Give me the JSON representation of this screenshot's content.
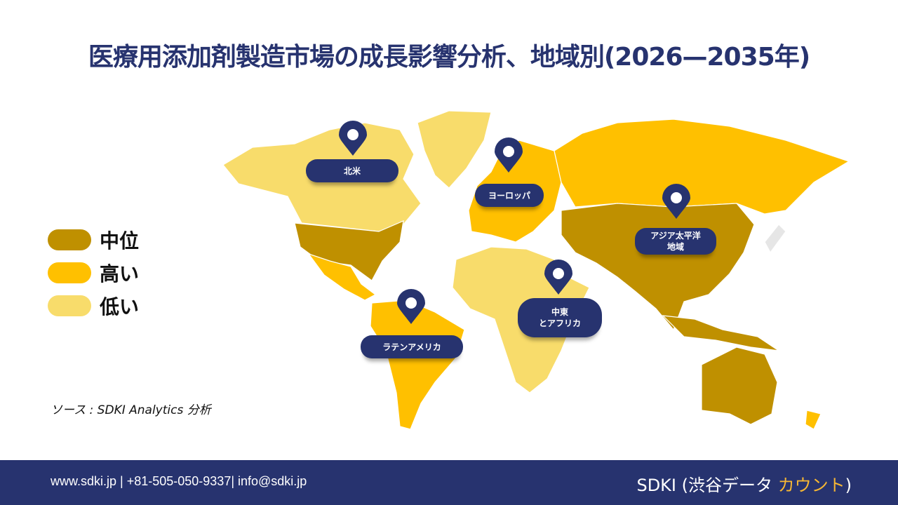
{
  "title": "医療用添加剤製造市場の成長影響分析、地域別(2026—2035年)",
  "legend": [
    {
      "label": "中位",
      "color": "#BF9000"
    },
    {
      "label": "高い",
      "color": "#FFC000"
    },
    {
      "label": "低い",
      "color": "#F8DC6B"
    }
  ],
  "regions": [
    {
      "name": "北米",
      "level": "低い"
    },
    {
      "name": "ヨーロッパ",
      "level": "高い"
    },
    {
      "name": "アジア太平洋地域",
      "line1": "アジア太平洋",
      "line2": "地域",
      "level": "中位"
    },
    {
      "name": "中東とアフリカ",
      "line1": "中東",
      "line2": "とアフリカ",
      "level": "低い"
    },
    {
      "name": "ラテンアメリカ",
      "level": "高い"
    }
  ],
  "source": "ソース : SDKI Analytics 分析",
  "footer": {
    "contact": "www.sdki.jp | +81-505-050-9337| info@sdki.jp",
    "brand_main": "SDKI (渋谷データ ",
    "brand_accent": "カウント",
    "brand_end": ")"
  },
  "colors": {
    "navy": "#27336F",
    "mid": "#BF9000",
    "high": "#FFC000",
    "low": "#F8DC6B"
  }
}
